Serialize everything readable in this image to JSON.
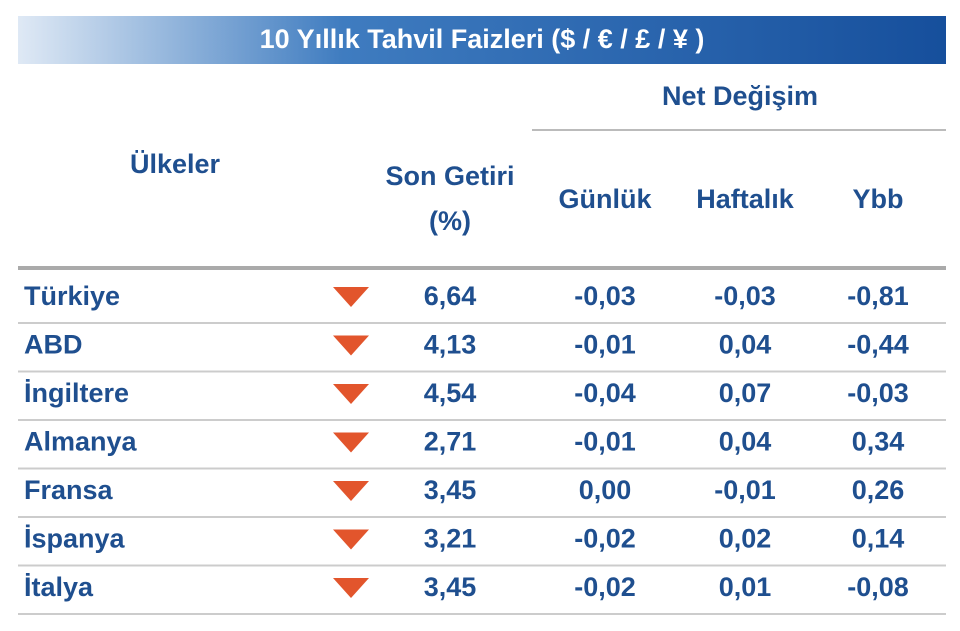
{
  "header": {
    "title": "10 Yıllık Tahvil Faizleri ($ / € / £ / ¥ )"
  },
  "table": {
    "group_header": "Net Değişim",
    "columns": [
      "Ülkeler",
      "Son Getiri",
      "(%)",
      "Günlük",
      "Haftalık",
      "Ybb"
    ],
    "rows": [
      [
        "Türkiye",
        "6,64",
        "-0,03",
        "-0,03",
        "-0,81"
      ],
      [
        "ABD",
        "4,13",
        "-0,01",
        "0,04",
        "-0,44"
      ],
      [
        "İngiltere",
        "4,54",
        "-0,04",
        "0,07",
        "-0,03"
      ],
      [
        "Almanya",
        "2,71",
        "-0,01",
        "0,04",
        "0,34"
      ],
      [
        "Fransa",
        "3,45",
        "0,00",
        "-0,01",
        "0,26"
      ],
      [
        "İspanya",
        "3,21",
        "-0,02",
        "0,02",
        "0,14"
      ],
      [
        "İtalya",
        "3,45",
        "-0,02",
        "0,01",
        "-0,08"
      ]
    ]
  }
}
